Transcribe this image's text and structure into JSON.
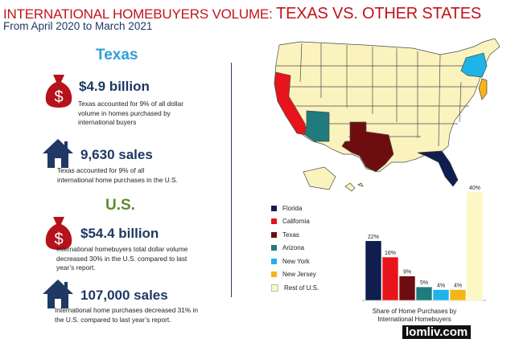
{
  "header": {
    "title_part1": "INTERNATIONAL HOMEBUYERS VOLUME: ",
    "title_part2": "TEXAS VS. OTHER STATES",
    "subtitle": "From April 2020 to March 2021"
  },
  "texas": {
    "heading": "Texas",
    "dollar": {
      "value": "$4.9 billion",
      "text": "Texas accounted for 9% of all dollar volume in homes purchased by international buyers"
    },
    "sales": {
      "value": "9,630 sales",
      "text": "Texas accounted for 9% of all international home purchases in the U.S."
    }
  },
  "us": {
    "heading": "U.S.",
    "dollar": {
      "value": "$54.4 billion",
      "text": "International homebuyers total dollar volume decreased 30% in the U.S. compared to last year’s report."
    },
    "sales": {
      "value": "107,000 sales",
      "text": "International home purchases decreased 31% in the U.S. compared to last year’s report."
    }
  },
  "icons": {
    "dollar": "money-bag-icon",
    "home": "house-icon"
  },
  "colors": {
    "title": "#c0141c",
    "navy": "#1f3864",
    "texas_heading": "#2e9fd8",
    "us_heading": "#5d8b2e"
  },
  "chart_data": {
    "type": "bar",
    "categories": [
      "Florida",
      "California",
      "Texas",
      "Arizona",
      "New York",
      "New Jersey",
      "Rest of U.S."
    ],
    "values": [
      22,
      16,
      9,
      5,
      4,
      4,
      40
    ],
    "value_labels": [
      "22%",
      "16%",
      "9%",
      "5%",
      "4%",
      "4%",
      "40%"
    ],
    "colors": [
      "#0f1d4f",
      "#e8141c",
      "#6e0d10",
      "#1f7b7c",
      "#1fb3e8",
      "#f6b41a",
      "#fdf7c3"
    ],
    "xlabel": "Share of Home Purchases by International Homebuyers",
    "ylabel": "",
    "ylim": [
      0,
      40
    ],
    "legend_position": "left",
    "grid": false
  },
  "watermark": "lomliv.com"
}
